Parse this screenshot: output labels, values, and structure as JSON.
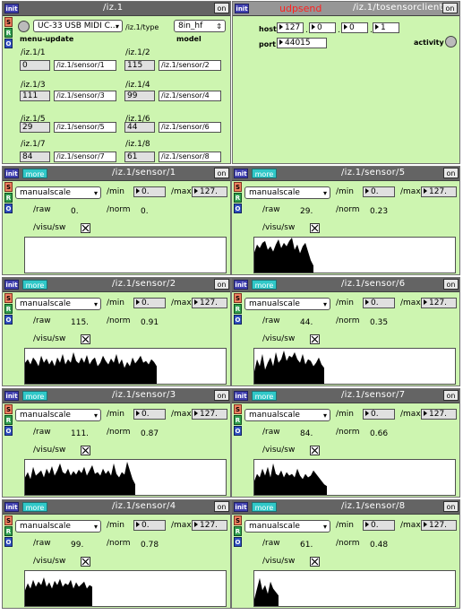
{
  "main": {
    "title": "/iz.1",
    "init": "init",
    "on": "on",
    "s": "S",
    "r": "R",
    "o": "O",
    "device_menu": "UC-33 USB MIDI C...",
    "type_label": "/iz.1/type",
    "model_menu": "8in_hf",
    "menu_update_label": "menu-update",
    "model_label": "model",
    "sensors": [
      {
        "label": "/iz.1/1",
        "value": "0",
        "addr": "/iz.1/sensor/1"
      },
      {
        "label": "/iz.1/2",
        "value": "115",
        "addr": "/iz.1/sensor/2"
      },
      {
        "label": "/iz.1/3",
        "value": "111",
        "addr": "/iz.1/sensor/3"
      },
      {
        "label": "/iz.1/4",
        "value": "99",
        "addr": "/iz.1/sensor/4"
      },
      {
        "label": "/iz.1/5",
        "value": "29",
        "addr": "/iz.1/sensor/5"
      },
      {
        "label": "/iz.1/6",
        "value": "44",
        "addr": "/iz.1/sensor/6"
      },
      {
        "label": "/iz.1/7",
        "value": "84",
        "addr": "/iz.1/sensor/7"
      },
      {
        "label": "/iz.1/8",
        "value": "61",
        "addr": "/iz.1/sensor/8"
      }
    ]
  },
  "udp": {
    "init": "init",
    "on": "on",
    "title": "udpsend",
    "client": "/iz.1/tosensorclient",
    "host_label": "host",
    "host": [
      "127",
      "0",
      "0",
      "1"
    ],
    "port_label": "port",
    "port": "44015",
    "activity_label": "activity"
  },
  "sensor_panels": [
    {
      "title": "/iz.1/sensor/1",
      "init": "init",
      "more": "more",
      "on": "on",
      "s": "S",
      "r": "R",
      "o": "O",
      "mode": "manualscale",
      "min_label": "/min",
      "min": "0.",
      "max_label": "/max",
      "max": "127.",
      "raw_label": "/raw",
      "raw": "0.",
      "norm_label": "/norm",
      "norm": "0.",
      "visu_label": "/visu/sw",
      "series": []
    },
    {
      "title": "/iz.1/sensor/5",
      "init": "init",
      "more": "more",
      "on": "on",
      "s": "S",
      "r": "R",
      "o": "O",
      "mode": "manualscale",
      "min_label": "/min",
      "min": "0.",
      "max_label": "/max",
      "max": "127.",
      "raw_label": "/raw",
      "raw": "29.",
      "norm_label": "/norm",
      "norm": "0.23",
      "visu_label": "/visu/sw",
      "series": [
        0.58,
        0.8,
        0.7,
        0.85,
        0.9,
        0.65,
        0.75,
        0.6,
        0.8,
        0.95,
        0.7,
        0.85,
        0.75,
        0.9,
        1.0,
        0.65,
        0.8,
        0.55,
        0.75,
        0.85,
        0.6,
        0.35,
        0.2
      ]
    },
    {
      "title": "/iz.1/sensor/2",
      "init": "init",
      "more": "more",
      "on": "on",
      "s": "S",
      "r": "R",
      "o": "O",
      "mode": "manualscale",
      "min_label": "/min",
      "min": "0.",
      "max_label": "/max",
      "max": "127.",
      "raw_label": "/raw",
      "raw": "115.",
      "norm_label": "/norm",
      "norm": "0.91",
      "visu_label": "/visu/sw",
      "series": [
        0.6,
        0.7,
        0.55,
        0.75,
        0.65,
        0.5,
        0.8,
        0.6,
        0.72,
        0.55,
        0.68,
        0.5,
        0.75,
        0.6,
        0.85,
        0.55,
        0.7,
        0.6,
        0.9,
        0.65,
        0.58,
        0.75,
        0.6,
        0.82,
        0.55,
        0.68,
        0.75,
        0.5,
        0.6,
        0.8,
        0.65,
        0.55,
        0.72,
        0.6,
        0.85,
        0.55,
        0.7,
        0.45,
        0.62,
        0.5,
        0.75,
        0.58,
        0.68,
        0.8,
        0.6,
        0.65,
        0.55,
        0.7,
        0.62,
        0.5
      ]
    },
    {
      "title": "/iz.1/sensor/6",
      "init": "init",
      "more": "more",
      "on": "on",
      "s": "S",
      "r": "R",
      "o": "O",
      "mode": "manualscale",
      "min_label": "/min",
      "min": "0.",
      "max_label": "/max",
      "max": "127.",
      "raw_label": "/raw",
      "raw": "44.",
      "norm_label": "/norm",
      "norm": "0.35",
      "visu_label": "/visu/sw",
      "series": [
        0.35,
        0.7,
        0.5,
        0.85,
        0.4,
        0.6,
        0.75,
        0.5,
        0.9,
        0.6,
        0.7,
        0.95,
        0.65,
        0.8,
        0.75,
        0.9,
        0.7,
        0.6,
        0.85,
        0.55,
        0.7,
        0.65,
        0.5,
        0.6,
        0.75,
        0.55,
        0.45
      ]
    },
    {
      "title": "/iz.1/sensor/3",
      "init": "init",
      "more": "more",
      "on": "on",
      "s": "S",
      "r": "R",
      "o": "O",
      "mode": "manualscale",
      "min_label": "/min",
      "min": "0.",
      "max_label": "/max",
      "max": "127.",
      "raw_label": "/raw",
      "raw": "111.",
      "norm_label": "/norm",
      "norm": "0.87",
      "visu_label": "/visu/sw",
      "series": [
        0.5,
        0.65,
        0.45,
        0.8,
        0.55,
        0.62,
        0.7,
        0.5,
        0.75,
        0.6,
        0.82,
        0.55,
        0.7,
        0.9,
        0.65,
        0.6,
        0.75,
        0.55,
        0.68,
        0.58,
        0.72,
        0.62,
        0.8,
        0.55,
        0.7,
        0.85,
        0.6,
        0.65,
        0.55,
        0.75,
        0.6,
        0.7,
        0.55,
        0.9,
        0.6,
        0.5,
        0.65,
        0.58,
        0.95,
        0.7,
        0.45,
        0.3
      ]
    },
    {
      "title": "/iz.1/sensor/7",
      "init": "init",
      "more": "more",
      "on": "on",
      "s": "S",
      "r": "R",
      "o": "O",
      "mode": "manualscale",
      "min_label": "/min",
      "min": "0.",
      "max_label": "/max",
      "max": "127.",
      "raw_label": "/raw",
      "raw": "84.",
      "norm_label": "/norm",
      "norm": "0.66",
      "visu_label": "/visu/sw",
      "series": [
        0.4,
        0.6,
        0.5,
        0.75,
        0.55,
        0.8,
        0.5,
        0.9,
        0.6,
        0.55,
        0.7,
        0.5,
        0.65,
        0.55,
        0.6,
        0.5,
        0.75,
        0.55,
        0.45,
        0.6,
        0.5,
        0.55,
        0.7,
        0.6,
        0.5,
        0.4,
        0.3,
        0.25
      ]
    },
    {
      "title": "/iz.1/sensor/4",
      "init": "init",
      "more": "more",
      "on": "on",
      "s": "S",
      "r": "R",
      "o": "O",
      "mode": "manualscale",
      "min_label": "/min",
      "min": "0.",
      "max_label": "/max",
      "max": "127.",
      "raw_label": "/raw",
      "raw": "99.",
      "norm_label": "/norm",
      "norm": "0.78",
      "visu_label": "/visu/sw",
      "series": [
        0.45,
        0.65,
        0.5,
        0.75,
        0.55,
        0.7,
        0.6,
        0.82,
        0.55,
        0.68,
        0.5,
        0.72,
        0.6,
        0.78,
        0.55,
        0.65,
        0.6,
        0.75,
        0.5,
        0.68,
        0.55,
        0.62,
        0.7,
        0.5,
        0.6,
        0.55
      ]
    },
    {
      "title": "/iz.1/sensor/8",
      "init": "init",
      "more": "more",
      "on": "on",
      "s": "S",
      "r": "R",
      "o": "O",
      "mode": "manualscale",
      "min_label": "/min",
      "min": "0.",
      "max_label": "/max",
      "max": "127.",
      "raw_label": "/raw",
      "raw": "61.",
      "norm_label": "/norm",
      "norm": "0.48",
      "visu_label": "/visu/sw",
      "series": [
        0.2,
        0.5,
        0.8,
        0.45,
        0.6,
        0.35,
        0.7,
        0.5,
        0.4,
        0.3
      ]
    }
  ]
}
